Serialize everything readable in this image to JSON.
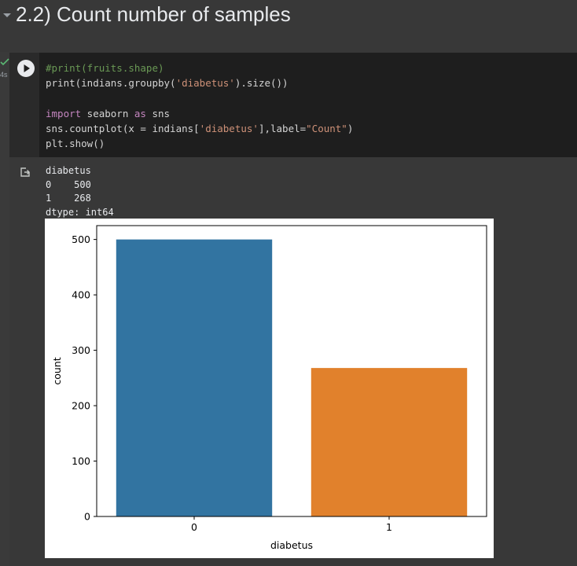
{
  "section": {
    "title": "2.2) Count number of samples"
  },
  "cell": {
    "exec_time": "4s",
    "code_lines": [
      [
        {
          "t": "#print(fruits.shape)",
          "c": "comment"
        }
      ],
      [
        {
          "t": "print(indians.groupby(",
          "c": ""
        },
        {
          "t": "'diabetus'",
          "c": "str"
        },
        {
          "t": ").size())",
          "c": ""
        }
      ],
      [],
      [
        {
          "t": "import",
          "c": "kw"
        },
        {
          "t": " seaborn ",
          "c": ""
        },
        {
          "t": "as",
          "c": "kw"
        },
        {
          "t": " sns",
          "c": ""
        }
      ],
      [
        {
          "t": "sns.countplot(x = indians[",
          "c": ""
        },
        {
          "t": "'diabetus'",
          "c": "str"
        },
        {
          "t": "],label=",
          "c": ""
        },
        {
          "t": "\"Count\"",
          "c": "str"
        },
        {
          "t": ")",
          "c": ""
        }
      ],
      [
        {
          "t": "plt.show()",
          "c": ""
        }
      ]
    ]
  },
  "output": {
    "stdout_lines": [
      "diabetus",
      "0    500",
      "1    268",
      "dtype: int64"
    ]
  },
  "colors": {
    "bar_0": "#3274a1",
    "bar_1": "#e1812c"
  },
  "chart_data": {
    "type": "bar",
    "categories": [
      "0",
      "1"
    ],
    "values": [
      500,
      268
    ],
    "xlabel": "diabetus",
    "ylabel": "count",
    "yticks": [
      0,
      100,
      200,
      300,
      400,
      500
    ],
    "ylim": [
      0,
      525
    ],
    "grid": false,
    "legend": "none"
  }
}
